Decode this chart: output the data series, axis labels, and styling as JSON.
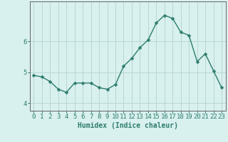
{
  "x": [
    0,
    1,
    2,
    3,
    4,
    5,
    6,
    7,
    8,
    9,
    10,
    11,
    12,
    13,
    14,
    15,
    16,
    17,
    18,
    19,
    20,
    21,
    22,
    23
  ],
  "y": [
    4.9,
    4.85,
    4.7,
    4.45,
    4.35,
    4.65,
    4.65,
    4.65,
    4.5,
    4.45,
    4.6,
    5.2,
    5.45,
    5.8,
    6.05,
    6.6,
    6.85,
    6.75,
    6.3,
    6.2,
    5.35,
    5.6,
    5.05,
    4.5
  ],
  "line_color": "#2e7d6e",
  "marker": "D",
  "marker_size": 2.5,
  "bg_color": "#d8f0ee",
  "grid_color": "#b8d8d4",
  "axis_color": "#666666",
  "xlabel": "Humidex (Indice chaleur)",
  "xlabel_fontsize": 7,
  "tick_fontsize": 6.5,
  "ylim": [
    3.75,
    7.3
  ],
  "yticks": [
    4,
    5,
    6
  ],
  "xticks": [
    0,
    1,
    2,
    3,
    4,
    5,
    6,
    7,
    8,
    9,
    10,
    11,
    12,
    13,
    14,
    15,
    16,
    17,
    18,
    19,
    20,
    21,
    22,
    23
  ]
}
